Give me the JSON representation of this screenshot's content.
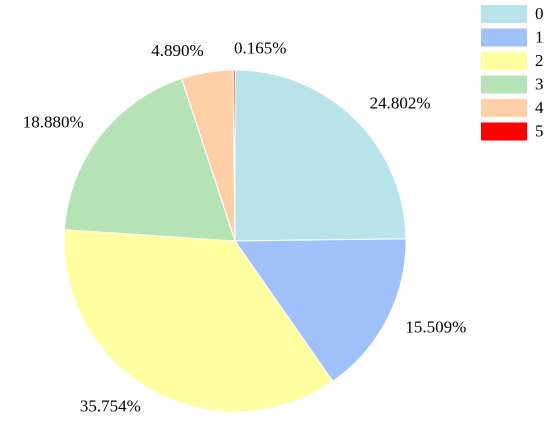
{
  "chart_data": {
    "type": "pie",
    "categories": [
      "0",
      "1",
      "2",
      "3",
      "4",
      "5"
    ],
    "values": [
      24.802,
      15.509,
      35.754,
      18.88,
      4.89,
      0.165
    ],
    "value_labels": [
      "24.802%",
      "15.509%",
      "35.754%",
      "18.880%",
      "4.890%",
      "0.165%"
    ],
    "colors": [
      "#b7e3e9",
      "#9fc0f9",
      "#ffffa2",
      "#b5e3b5",
      "#ffd0a8",
      "#ff0000"
    ],
    "start_angle": 90,
    "direction": "clockwise",
    "legend": "upper right"
  }
}
